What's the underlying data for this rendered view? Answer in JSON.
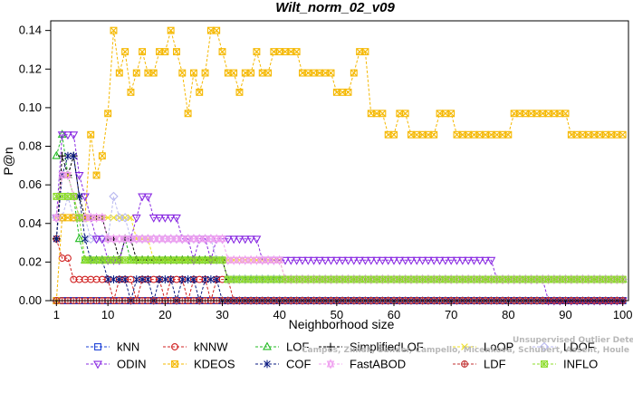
{
  "chart_data": {
    "type": "line",
    "title": "Wilt_norm_02_v09",
    "xlabel": "Neighborhood size",
    "ylabel": "P@n",
    "xlim": [
      0,
      101
    ],
    "ylim": [
      0,
      0.145
    ],
    "xticks": [
      1,
      10,
      20,
      30,
      40,
      50,
      60,
      70,
      80,
      90,
      100
    ],
    "yticks": [
      0.0,
      0.02,
      0.04,
      0.06,
      0.08,
      0.1,
      0.12,
      0.14
    ],
    "ytick_labels": [
      "0.00",
      "0.02",
      "0.04",
      "0.06",
      "0.08",
      "0.10",
      "0.12",
      "0.14"
    ],
    "grid": false,
    "legend_position": "bottom",
    "watermark": "Campos, Zimek, Sander, Campello, Micenková, Schubert, Assent, Houle: On the Evaluation of Unsupervised Outlier Detection, DAMI, 2015.",
    "series": [
      {
        "name": "kNN",
        "color": "#1a3fd6",
        "marker": "square",
        "pts": [
          [
            1,
            0.0
          ],
          [
            100,
            0.0
          ]
        ]
      },
      {
        "name": "kNNW",
        "color": "#d02020",
        "marker": "circle",
        "pts": [
          [
            1,
            0.032
          ],
          [
            2,
            0.022
          ],
          [
            3,
            0.022
          ],
          [
            4,
            0.011
          ],
          [
            6,
            0.011
          ],
          [
            8,
            0.011
          ],
          [
            10,
            0.011
          ],
          [
            11,
            0.0
          ],
          [
            12,
            0.011
          ],
          [
            14,
            0.011
          ],
          [
            15,
            0.0
          ],
          [
            16,
            0.011
          ],
          [
            19,
            0.011
          ],
          [
            20,
            0.0
          ],
          [
            21,
            0.011
          ],
          [
            23,
            0.011
          ],
          [
            24,
            0.0
          ],
          [
            25,
            0.011
          ],
          [
            27,
            0.011
          ],
          [
            28,
            0.0
          ],
          [
            29,
            0.011
          ],
          [
            31,
            0.011
          ],
          [
            32,
            0.0
          ],
          [
            100,
            0.0
          ]
        ]
      },
      {
        "name": "LOF",
        "color": "#22bb22",
        "marker": "triangle-up",
        "pts": [
          [
            1,
            0.075
          ],
          [
            2,
            0.086
          ],
          [
            3,
            0.065
          ],
          [
            4,
            0.054
          ],
          [
            5,
            0.032
          ],
          [
            6,
            0.021
          ],
          [
            12,
            0.021
          ],
          [
            13,
            0.032
          ],
          [
            14,
            0.021
          ],
          [
            30,
            0.021
          ],
          [
            31,
            0.011
          ],
          [
            100,
            0.011
          ]
        ]
      },
      {
        "name": "SimplifiedLOF",
        "color": "#000000",
        "marker": "plus",
        "pts": [
          [
            1,
            0.032
          ],
          [
            2,
            0.075
          ],
          [
            3,
            0.065
          ],
          [
            4,
            0.075
          ],
          [
            5,
            0.054
          ],
          [
            6,
            0.043
          ],
          [
            9,
            0.043
          ],
          [
            10,
            0.032
          ],
          [
            11,
            0.032
          ],
          [
            12,
            0.021
          ],
          [
            13,
            0.032
          ],
          [
            14,
            0.032
          ],
          [
            15,
            0.021
          ],
          [
            17,
            0.021
          ],
          [
            18,
            0.021
          ],
          [
            30,
            0.021
          ],
          [
            31,
            0.011
          ],
          [
            100,
            0.011
          ]
        ]
      },
      {
        "name": "LoOP",
        "color": "#f0e020",
        "marker": "x",
        "pts": [
          [
            1,
            0.043
          ],
          [
            2,
            0.065
          ],
          [
            3,
            0.065
          ],
          [
            4,
            0.054
          ],
          [
            5,
            0.043
          ],
          [
            13,
            0.043
          ],
          [
            15,
            0.032
          ],
          [
            17,
            0.032
          ],
          [
            18,
            0.021
          ],
          [
            30,
            0.021
          ],
          [
            31,
            0.021
          ],
          [
            38,
            0.021
          ],
          [
            39,
            0.021
          ],
          [
            40,
            0.021
          ],
          [
            41,
            0.011
          ],
          [
            100,
            0.011
          ]
        ]
      },
      {
        "name": "LDOF",
        "color": "#b8b8f0",
        "marker": "diamond",
        "pts": [
          [
            1,
            0.043
          ],
          [
            2,
            0.043
          ],
          [
            3,
            0.054
          ],
          [
            4,
            0.043
          ],
          [
            5,
            0.043
          ],
          [
            7,
            0.032
          ],
          [
            10,
            0.032
          ],
          [
            11,
            0.054
          ],
          [
            12,
            0.043
          ],
          [
            14,
            0.032
          ],
          [
            19,
            0.032
          ],
          [
            20,
            0.032
          ],
          [
            28,
            0.032
          ],
          [
            29,
            0.021
          ],
          [
            30,
            0.021
          ],
          [
            31,
            0.011
          ],
          [
            100,
            0.011
          ]
        ]
      },
      {
        "name": "ODIN",
        "color": "#8a2be2",
        "marker": "triangle-down",
        "pts": [
          [
            1,
            0.043
          ],
          [
            2,
            0.086
          ],
          [
            3,
            0.086
          ],
          [
            4,
            0.086
          ],
          [
            5,
            0.065
          ],
          [
            6,
            0.054
          ],
          [
            7,
            0.043
          ],
          [
            8,
            0.032
          ],
          [
            9,
            0.032
          ],
          [
            10,
            0.021
          ],
          [
            12,
            0.021
          ],
          [
            13,
            0.032
          ],
          [
            14,
            0.032
          ],
          [
            15,
            0.043
          ],
          [
            16,
            0.054
          ],
          [
            17,
            0.054
          ],
          [
            18,
            0.043
          ],
          [
            19,
            0.043
          ],
          [
            20,
            0.043
          ],
          [
            21,
            0.043
          ],
          [
            22,
            0.043
          ],
          [
            23,
            0.032
          ],
          [
            24,
            0.032
          ],
          [
            25,
            0.021
          ],
          [
            26,
            0.032
          ],
          [
            27,
            0.032
          ],
          [
            28,
            0.021
          ],
          [
            29,
            0.032
          ],
          [
            36,
            0.032
          ],
          [
            37,
            0.021
          ],
          [
            77,
            0.021
          ],
          [
            78,
            0.011
          ],
          [
            82,
            0.011
          ],
          [
            83,
            0.011
          ],
          [
            84,
            0.011
          ],
          [
            86,
            0.011
          ],
          [
            87,
            0.0
          ],
          [
            100,
            0.0
          ]
        ]
      },
      {
        "name": "KDEOS",
        "color": "#f5b800",
        "marker": "boxed",
        "pts": [
          [
            1,
            0.0
          ],
          [
            2,
            0.043
          ],
          [
            3,
            0.043
          ],
          [
            4,
            0.043
          ],
          [
            5,
            0.043
          ],
          [
            6,
            0.043
          ],
          [
            7,
            0.086
          ],
          [
            8,
            0.065
          ],
          [
            9,
            0.075
          ],
          [
            10,
            0.097
          ],
          [
            11,
            0.14
          ],
          [
            12,
            0.118
          ],
          [
            13,
            0.129
          ],
          [
            14,
            0.108
          ],
          [
            15,
            0.118
          ],
          [
            16,
            0.129
          ],
          [
            17,
            0.118
          ],
          [
            18,
            0.118
          ],
          [
            19,
            0.129
          ],
          [
            20,
            0.129
          ],
          [
            21,
            0.14
          ],
          [
            22,
            0.129
          ],
          [
            23,
            0.118
          ],
          [
            24,
            0.097
          ],
          [
            25,
            0.118
          ],
          [
            26,
            0.108
          ],
          [
            27,
            0.118
          ],
          [
            28,
            0.14
          ],
          [
            29,
            0.14
          ],
          [
            30,
            0.129
          ],
          [
            31,
            0.118
          ],
          [
            32,
            0.118
          ],
          [
            33,
            0.108
          ],
          [
            34,
            0.118
          ],
          [
            35,
            0.118
          ],
          [
            36,
            0.129
          ],
          [
            37,
            0.118
          ],
          [
            38,
            0.118
          ],
          [
            39,
            0.129
          ],
          [
            40,
            0.129
          ],
          [
            43,
            0.129
          ],
          [
            44,
            0.118
          ],
          [
            45,
            0.118
          ],
          [
            49,
            0.118
          ],
          [
            50,
            0.108
          ],
          [
            52,
            0.108
          ],
          [
            53,
            0.118
          ],
          [
            54,
            0.129
          ],
          [
            55,
            0.129
          ],
          [
            56,
            0.097
          ],
          [
            58,
            0.097
          ],
          [
            59,
            0.086
          ],
          [
            60,
            0.086
          ],
          [
            61,
            0.097
          ],
          [
            62,
            0.097
          ],
          [
            63,
            0.086
          ],
          [
            67,
            0.086
          ],
          [
            68,
            0.097
          ],
          [
            70,
            0.097
          ],
          [
            71,
            0.086
          ],
          [
            80,
            0.086
          ],
          [
            81,
            0.097
          ],
          [
            90,
            0.097
          ],
          [
            91,
            0.086
          ],
          [
            100,
            0.086
          ]
        ]
      },
      {
        "name": "COF",
        "color": "#0a1a80",
        "marker": "asterisk",
        "pts": [
          [
            1,
            0.032
          ],
          [
            2,
            0.065
          ],
          [
            3,
            0.075
          ],
          [
            4,
            0.075
          ],
          [
            5,
            0.054
          ],
          [
            6,
            0.032
          ],
          [
            7,
            0.021
          ],
          [
            9,
            0.021
          ],
          [
            10,
            0.011
          ],
          [
            13,
            0.011
          ],
          [
            14,
            0.0
          ],
          [
            15,
            0.011
          ],
          [
            17,
            0.011
          ],
          [
            18,
            0.0
          ],
          [
            19,
            0.011
          ],
          [
            21,
            0.011
          ],
          [
            22,
            0.0
          ],
          [
            23,
            0.011
          ],
          [
            25,
            0.011
          ],
          [
            26,
            0.0
          ],
          [
            27,
            0.011
          ],
          [
            29,
            0.011
          ],
          [
            30,
            0.0
          ],
          [
            100,
            0.0
          ]
        ]
      },
      {
        "name": "FastABOD",
        "color": "#f0a0f0",
        "marker": "star",
        "pts": [
          [
            1,
            0.043
          ],
          [
            2,
            0.065
          ],
          [
            3,
            0.065
          ],
          [
            4,
            0.054
          ],
          [
            5,
            0.043
          ],
          [
            9,
            0.043
          ],
          [
            10,
            0.032
          ],
          [
            30,
            0.032
          ],
          [
            31,
            0.021
          ],
          [
            40,
            0.021
          ],
          [
            41,
            0.011
          ],
          [
            100,
            0.011
          ]
        ]
      },
      {
        "name": "LDF",
        "color": "#c03030",
        "marker": "circle-plus",
        "pts": [
          [
            1,
            0.0
          ],
          [
            100,
            0.0
          ]
        ]
      },
      {
        "name": "INFLO",
        "color": "#8cdc2a",
        "marker": "boxed-x",
        "pts": [
          [
            1,
            0.054
          ],
          [
            2,
            0.054
          ],
          [
            3,
            0.054
          ],
          [
            4,
            0.054
          ],
          [
            5,
            0.043
          ],
          [
            6,
            0.021
          ],
          [
            30,
            0.021
          ],
          [
            31,
            0.011
          ],
          [
            100,
            0.011
          ]
        ]
      }
    ]
  },
  "legend": {
    "row1": [
      "kNN",
      "kNNW",
      "LOF",
      "SimplifiedLOF",
      "LoOP",
      "LDOF"
    ],
    "row2": [
      "ODIN",
      "KDEOS",
      "COF",
      "FastABOD",
      "LDF",
      "INFLO"
    ]
  }
}
